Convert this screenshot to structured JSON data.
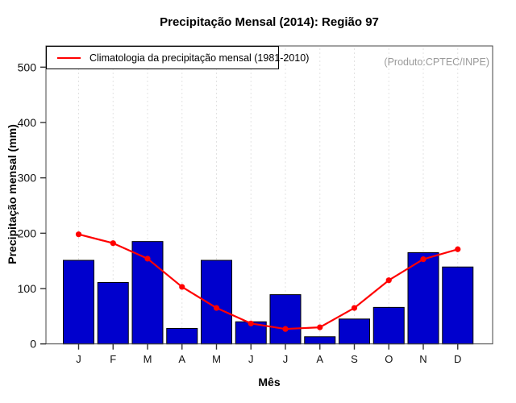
{
  "page": {
    "title": "Precipitação Mensal (2014): Região 97",
    "watermark": "(Produto:CPTEC/INPE)"
  },
  "legend": {
    "label": "Climatologia da precipitação mensal (1981-2010)"
  },
  "axes": {
    "xlabel": "Mês",
    "ylabel": "Precipitação mensal (mm)"
  },
  "colors": {
    "bar_fill": "#0000CD",
    "bar_stroke": "#000000",
    "line": "#FF0000",
    "grid": "#D9D9D9",
    "frame": "#444444",
    "tick": "#333333",
    "tick_label": "#111111",
    "watermark": "#9A9A9A"
  },
  "chart_data": {
    "type": "bar",
    "title": "Precipitação Mensal (2014): Região 97",
    "xlabel": "Mês",
    "ylabel": "Precipitação mensal (mm)",
    "categories": [
      "J",
      "F",
      "M",
      "A",
      "M",
      "J",
      "J",
      "A",
      "S",
      "O",
      "N",
      "D"
    ],
    "series": [
      {
        "name": "Precipitação mensal (2014)",
        "type": "bar",
        "color": "#0000CD",
        "values": [
          151,
          111,
          185,
          28,
          151,
          40,
          89,
          13,
          45,
          66,
          165,
          139
        ]
      },
      {
        "name": "Climatologia da precipitação mensal (1981-2010)",
        "type": "line",
        "color": "#FF0000",
        "values": [
          198,
          182,
          154,
          103,
          65,
          37,
          27,
          30,
          65,
          115,
          153,
          171
        ]
      }
    ],
    "ylim": [
      0,
      538
    ],
    "yticks": [
      0,
      100,
      200,
      300,
      400,
      500
    ],
    "grid": "vertical-dotted",
    "legend_position": "top-left",
    "annotations": [
      "(Produto:CPTEC/INPE)"
    ]
  }
}
